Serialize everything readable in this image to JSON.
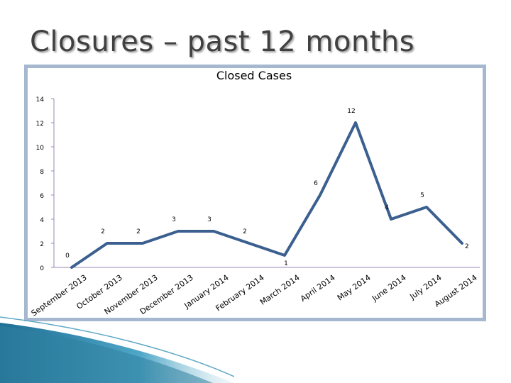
{
  "slide": {
    "title": "Closures – past 12 months"
  },
  "chart_data": {
    "type": "line",
    "title": "Closed Cases",
    "xlabel": "",
    "ylabel": "",
    "ylim": [
      0,
      14
    ],
    "yticks": [
      0,
      2,
      4,
      6,
      8,
      10,
      12,
      14
    ],
    "grid": false,
    "legend": "none",
    "categories": [
      "September 2013",
      "October 2013",
      "November 2013",
      "December 2013",
      "January 2014",
      "February 2014",
      "March 2014",
      "April 2014",
      "May 2014",
      "June 2014",
      "July 2014",
      "August 2014"
    ],
    "series": [
      {
        "values": [
          0,
          2,
          2,
          3,
          3,
          2,
          1,
          6,
          12,
          4,
          5,
          2
        ]
      }
    ]
  },
  "colors": {
    "line": "#3b5f8f",
    "frame": "#a5b8cf",
    "axis": "#9a8ab5",
    "text": "#000000",
    "accent": "#2f7f9e"
  }
}
